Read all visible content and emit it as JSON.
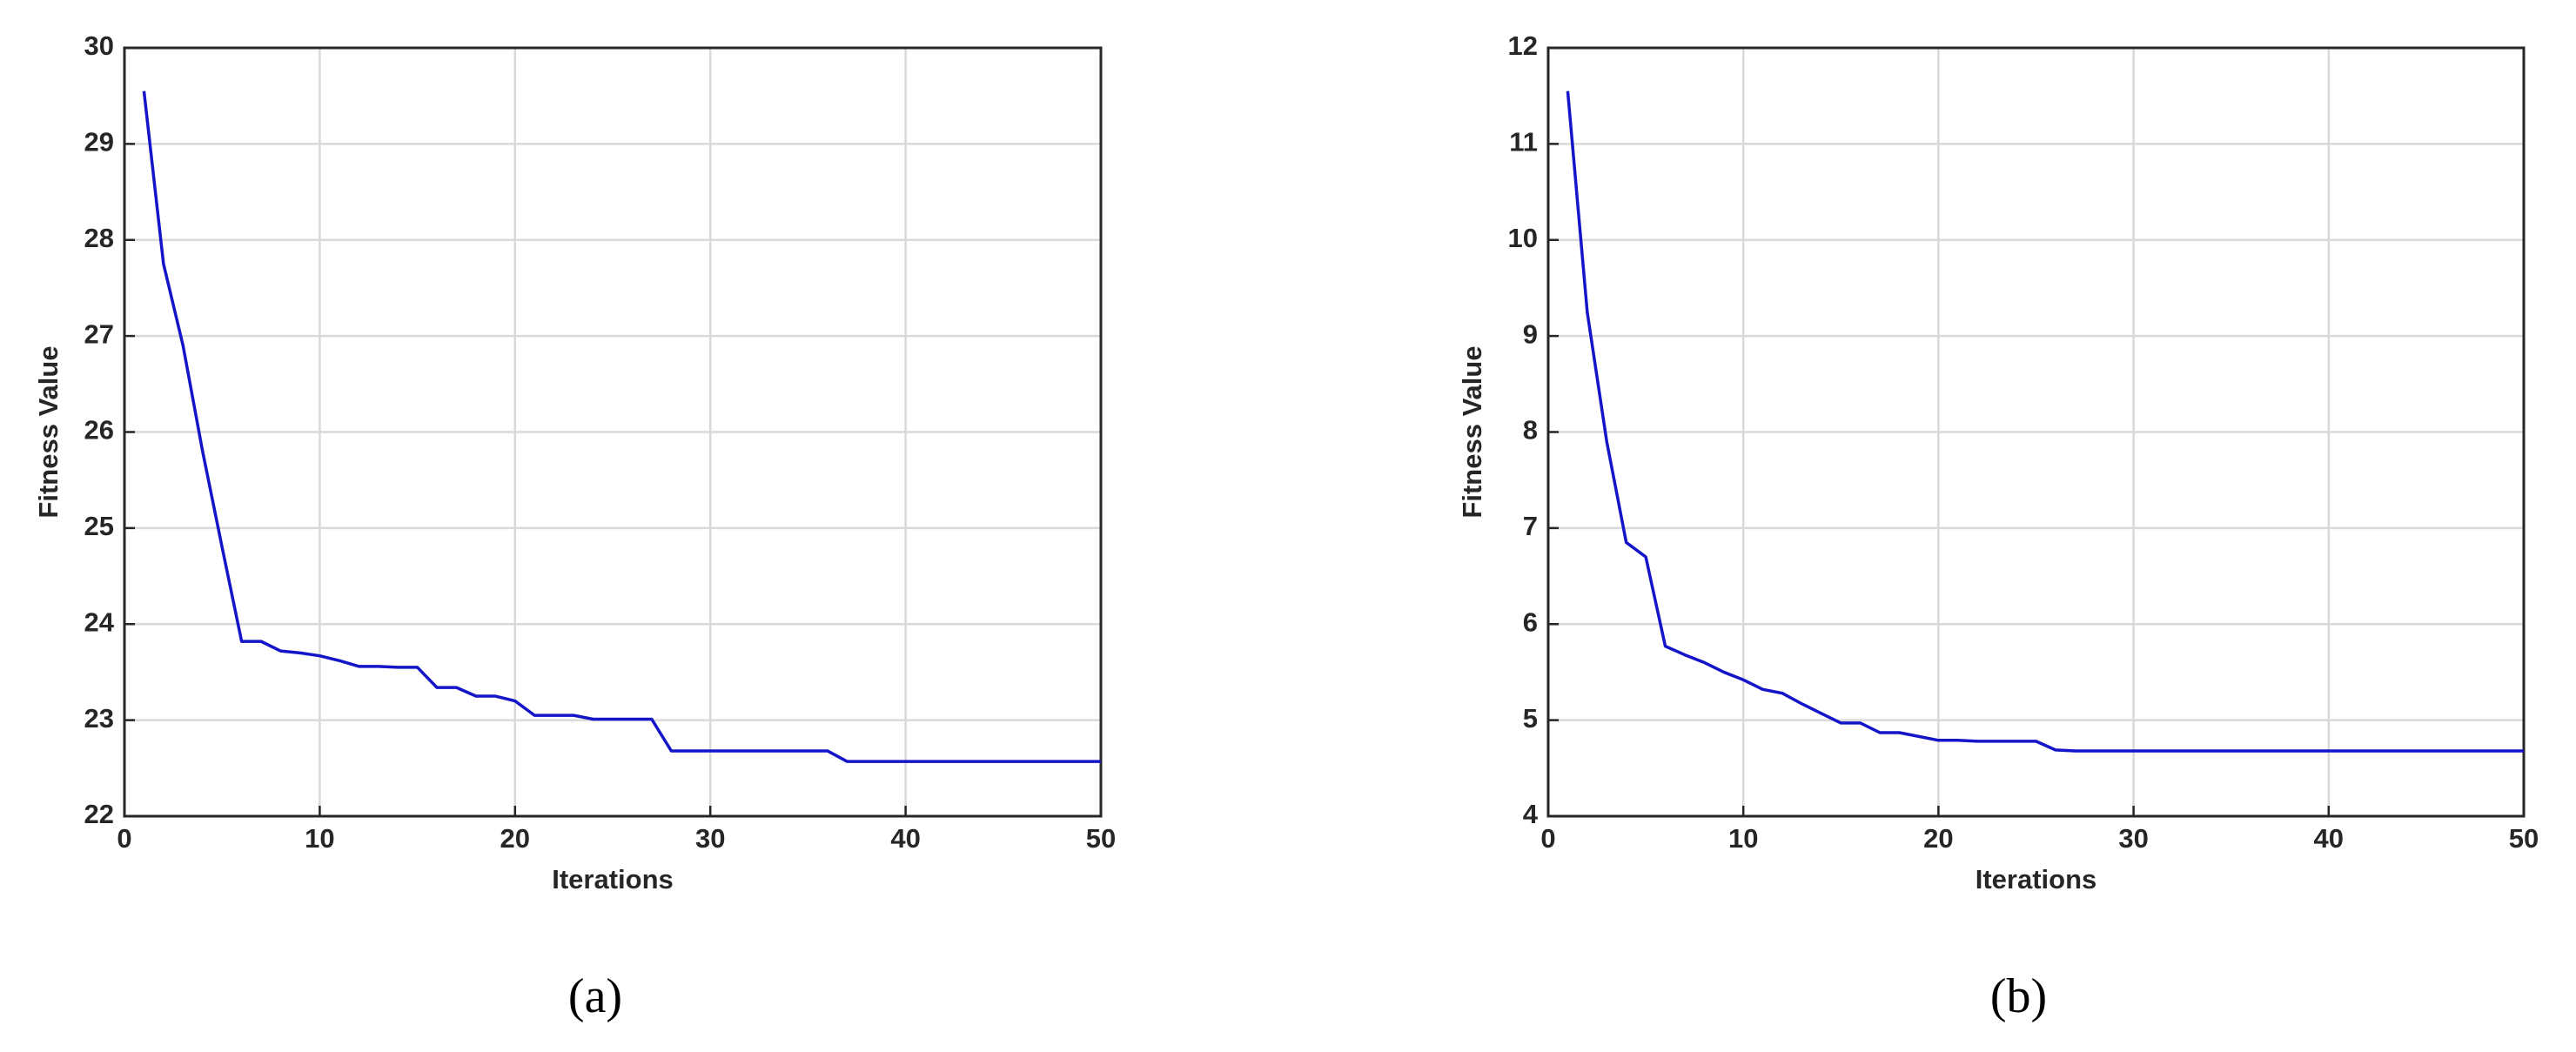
{
  "chart_data": [
    {
      "type": "line",
      "caption": "(a)",
      "xlabel": "Iterations",
      "ylabel": "Fitness Value",
      "x": [
        1,
        2,
        3,
        4,
        5,
        6,
        7,
        8,
        9,
        10,
        11,
        12,
        13,
        14,
        15,
        16,
        17,
        18,
        19,
        20,
        21,
        22,
        23,
        24,
        25,
        26,
        27,
        28,
        29,
        30,
        31,
        32,
        33,
        34,
        35,
        36,
        37,
        38,
        39,
        40,
        41,
        42,
        43,
        44,
        45,
        46,
        47,
        48,
        49,
        50
      ],
      "series": [
        {
          "color": "#1414c8",
          "values": [
            29.55,
            27.75,
            26.9,
            25.8,
            24.8,
            23.82,
            23.82,
            23.72,
            23.7,
            23.67,
            23.62,
            23.56,
            23.56,
            23.55,
            23.55,
            23.34,
            23.34,
            23.25,
            23.25,
            23.2,
            23.05,
            23.05,
            23.05,
            23.01,
            23.01,
            23.01,
            23.01,
            22.68,
            22.68,
            22.68,
            22.68,
            22.68,
            22.68,
            22.68,
            22.68,
            22.68,
            22.57,
            22.57,
            22.57,
            22.57,
            22.57,
            22.57,
            22.57,
            22.57,
            22.57,
            22.57,
            22.57,
            22.57,
            22.57,
            22.57
          ]
        }
      ],
      "xlim": [
        0,
        50
      ],
      "xticks": [
        0,
        10,
        20,
        30,
        40,
        50
      ],
      "ylim": [
        22,
        30
      ],
      "yticks": [
        22,
        23,
        24,
        25,
        26,
        27,
        28,
        29,
        30
      ],
      "grid": true
    },
    {
      "type": "line",
      "caption": "(b)",
      "xlabel": "Iterations",
      "ylabel": "Fitness Value",
      "x": [
        1,
        2,
        3,
        4,
        5,
        6,
        7,
        8,
        9,
        10,
        11,
        12,
        13,
        14,
        15,
        16,
        17,
        18,
        19,
        20,
        21,
        22,
        23,
        24,
        25,
        26,
        27,
        28,
        29,
        30,
        31,
        32,
        33,
        34,
        35,
        36,
        37,
        38,
        39,
        40,
        41,
        42,
        43,
        44,
        45,
        46,
        47,
        48,
        49,
        50
      ],
      "series": [
        {
          "color": "#1414c8",
          "values": [
            11.55,
            9.25,
            7.9,
            6.85,
            6.7,
            5.77,
            5.68,
            5.6,
            5.5,
            5.42,
            5.32,
            5.28,
            5.17,
            5.07,
            4.97,
            4.97,
            4.87,
            4.87,
            4.83,
            4.79,
            4.79,
            4.78,
            4.78,
            4.78,
            4.78,
            4.69,
            4.68,
            4.68,
            4.68,
            4.68,
            4.68,
            4.68,
            4.68,
            4.68,
            4.68,
            4.68,
            4.68,
            4.68,
            4.68,
            4.68,
            4.68,
            4.68,
            4.68,
            4.68,
            4.68,
            4.68,
            4.68,
            4.68,
            4.68,
            4.68
          ]
        }
      ],
      "xlim": [
        0,
        50
      ],
      "xticks": [
        0,
        10,
        20,
        30,
        40,
        50
      ],
      "ylim": [
        4,
        12
      ],
      "yticks": [
        4,
        5,
        6,
        7,
        8,
        9,
        10,
        11,
        12
      ],
      "grid": true
    }
  ]
}
